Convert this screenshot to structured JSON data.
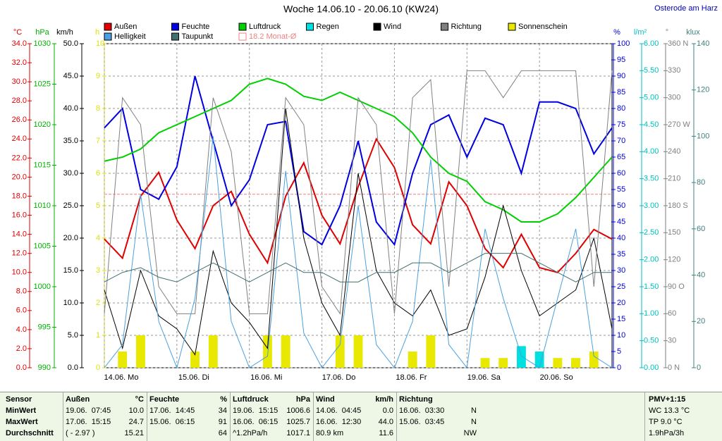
{
  "chart_data": {
    "type": "line",
    "title": "Woche 14.06.10 - 20.06.10 (KW24)",
    "location": "Osterode am Harz",
    "x": [
      0,
      6,
      12,
      18,
      24,
      30,
      36,
      42,
      48,
      54,
      60,
      66,
      72,
      78,
      84,
      90,
      96,
      102,
      108,
      114,
      120,
      126,
      132,
      138,
      144,
      150,
      156,
      162,
      168
    ],
    "xlim": [
      0,
      168
    ],
    "xticks": [
      {
        "value": 0,
        "label": "14.06.  Mo"
      },
      {
        "value": 24,
        "label": "15.06.  Di"
      },
      {
        "value": 48,
        "label": "16.06.  Mi"
      },
      {
        "value": 72,
        "label": "17.06.  Do"
      },
      {
        "value": 96,
        "label": "18.06.  Fr"
      },
      {
        "value": 120,
        "label": "19.06.  Sa"
      },
      {
        "value": 144,
        "label": "20.06.  So"
      }
    ],
    "axes": {
      "y": {
        "label": "°C",
        "color": "#e00000",
        "lim": [
          0,
          34
        ],
        "ticks": [
          {
            "value": 0,
            "label": "0.0"
          },
          {
            "value": 2,
            "label": "2.0"
          },
          {
            "value": 4,
            "label": "4.0"
          },
          {
            "value": 6,
            "label": "6.0"
          },
          {
            "value": 8,
            "label": "8.0"
          },
          {
            "value": 10,
            "label": "10.0"
          },
          {
            "value": 12,
            "label": "12.0"
          },
          {
            "value": 14,
            "label": "14.0"
          },
          {
            "value": 16,
            "label": "16.0"
          },
          {
            "value": 18,
            "label": "18.0"
          },
          {
            "value": 20,
            "label": "20.0"
          },
          {
            "value": 22,
            "label": "22.0"
          },
          {
            "value": 24,
            "label": "24.0"
          },
          {
            "value": 26,
            "label": "26.0"
          },
          {
            "value": 28,
            "label": "28.0"
          },
          {
            "value": 30,
            "label": "30.0"
          },
          {
            "value": 32,
            "label": "32.0"
          },
          {
            "value": 34,
            "label": "34.0"
          }
        ]
      },
      "y2": {
        "label": "hPa",
        "color": "#00b000",
        "lim": [
          990,
          1030
        ],
        "ticks": [
          990,
          995,
          1000,
          1005,
          1010,
          1015,
          1020,
          1025,
          1030
        ]
      },
      "y3": {
        "label": "km/h",
        "color": "#000000",
        "lim": [
          0,
          50
        ],
        "ticks": [
          {
            "value": 0,
            "label": "0.0"
          },
          {
            "value": 5,
            "label": "5.0"
          },
          {
            "value": 10,
            "label": "10.0"
          },
          {
            "value": 15,
            "label": "15.0"
          },
          {
            "value": 20,
            "label": "20.0"
          },
          {
            "value": 25,
            "label": "25.0"
          },
          {
            "value": 30,
            "label": "30.0"
          },
          {
            "value": 35,
            "label": "35.0"
          },
          {
            "value": 40,
            "label": "40.0"
          },
          {
            "value": 45,
            "label": "45.0"
          },
          {
            "value": 50,
            "label": "50.0"
          }
        ]
      },
      "y4": {
        "label": "h",
        "color": "#e0e000",
        "lim": [
          0,
          10
        ],
        "ticks": [
          0,
          1,
          2,
          3,
          4,
          5,
          6,
          7,
          8,
          9,
          10
        ]
      },
      "y5": {
        "label": "%",
        "color": "#0000e0",
        "lim": [
          0,
          100
        ],
        "ticks": [
          0,
          5,
          10,
          15,
          20,
          25,
          30,
          35,
          40,
          45,
          50,
          55,
          60,
          65,
          70,
          75,
          80,
          85,
          90,
          95,
          100
        ]
      },
      "y6": {
        "label": "l/m²",
        "color": "#00c0c0",
        "lim": [
          0,
          6
        ],
        "ticks": [
          {
            "value": 0,
            "label": "0.00"
          },
          {
            "value": 0.5,
            "label": "0.50"
          },
          {
            "value": 1,
            "label": "1.00"
          },
          {
            "value": 1.5,
            "label": "1.50"
          },
          {
            "value": 2,
            "label": "2.00"
          },
          {
            "value": 2.5,
            "label": "2.50"
          },
          {
            "value": 3,
            "label": "3.00"
          },
          {
            "value": 3.5,
            "label": "3.50"
          },
          {
            "value": 4,
            "label": "4.00"
          },
          {
            "value": 4.5,
            "label": "4.50"
          },
          {
            "value": 5,
            "label": "5.00"
          },
          {
            "value": 5.5,
            "label": "5.50"
          },
          {
            "value": 6,
            "label": "6.00"
          }
        ]
      },
      "y7": {
        "label": "°",
        "color": "#808080",
        "lim": [
          0,
          360
        ],
        "ticks": [
          {
            "value": 0,
            "label": "0 N"
          },
          30,
          60,
          {
            "value": 90,
            "label": "90 O"
          },
          120,
          150,
          {
            "value": 180,
            "label": "180 S"
          },
          210,
          240,
          {
            "value": 270,
            "label": "270 W"
          },
          300,
          330,
          {
            "value": 360,
            "label": "360 N"
          }
        ]
      },
      "y8": {
        "label": "klux",
        "color": "#408080",
        "lim": [
          0,
          140
        ],
        "ticks": [
          0,
          20,
          40,
          60,
          80,
          100,
          120,
          140
        ]
      }
    },
    "series": [
      {
        "name": "Außen",
        "type": "line",
        "axis": "y",
        "color": "#e00000",
        "values": [
          13.5,
          11.5,
          18,
          20.5,
          15.5,
          12.5,
          17,
          18.5,
          14,
          11,
          18,
          21.5,
          16,
          13,
          19,
          24,
          21,
          15,
          13,
          19.5,
          17,
          12.5,
          10.5,
          14,
          10.5,
          10,
          12,
          14.5,
          13.5
        ]
      },
      {
        "name": "Feuchte",
        "type": "line",
        "axis": "y5",
        "color": "#0000e0",
        "values": [
          74,
          80,
          55,
          52,
          62,
          90,
          70,
          50,
          58,
          75,
          76,
          42,
          38,
          50,
          70,
          45,
          38,
          60,
          75,
          78,
          65,
          77,
          75,
          60,
          82,
          82,
          80,
          66,
          74
        ]
      },
      {
        "name": "Luftdruck",
        "type": "line",
        "axis": "y2",
        "color": "#00d000",
        "values": [
          1015.5,
          1016,
          1017,
          1019,
          1020,
          1021,
          1022,
          1023,
          1025,
          1025.7,
          1025,
          1023.5,
          1023,
          1024,
          1023,
          1022,
          1021,
          1019,
          1016,
          1014,
          1013,
          1010.5,
          1009.5,
          1008,
          1008,
          1009,
          1011,
          1013.5,
          1016
        ]
      },
      {
        "name": "Regen",
        "type": "bar",
        "axis": "y6",
        "color": "#00e0e0",
        "values": [
          0,
          0,
          0,
          0,
          0,
          0,
          0,
          0,
          0,
          0,
          0,
          0,
          0,
          0,
          0,
          0,
          0,
          0,
          0,
          0,
          0,
          0,
          0,
          0.4,
          0.3,
          0,
          0.1,
          0,
          0
        ]
      },
      {
        "name": "Wind",
        "type": "line",
        "axis": "y3",
        "color": "#000000",
        "values": [
          12,
          3,
          15,
          8,
          6,
          2,
          18,
          10,
          7,
          3,
          40,
          20,
          10,
          5,
          30,
          15,
          10,
          8,
          12,
          5,
          6,
          14,
          25,
          15,
          8,
          10,
          12,
          20,
          6
        ]
      },
      {
        "name": "Richtung",
        "type": "line",
        "axis": "y7",
        "color": "#808080",
        "values": [
          60,
          300,
          270,
          90,
          60,
          60,
          300,
          240,
          60,
          60,
          300,
          270,
          90,
          60,
          300,
          270,
          60,
          300,
          320,
          90,
          330,
          330,
          300,
          330,
          330,
          330,
          330,
          90,
          330
        ]
      },
      {
        "name": "Sonnenschein",
        "type": "bar",
        "axis": "y4",
        "color": "#e8e800",
        "values": [
          0,
          0.5,
          1,
          0,
          0,
          0.5,
          1,
          0,
          0,
          1,
          1,
          0,
          0,
          1,
          1,
          0,
          0,
          0.5,
          1,
          0,
          0,
          0.3,
          0.3,
          0,
          0,
          0.3,
          0.3,
          0.5,
          0
        ]
      },
      {
        "name": "Helligkeit",
        "type": "line",
        "axis": "y8",
        "color": "#4aa0e0",
        "values": [
          0,
          10,
          75,
          20,
          0,
          30,
          100,
          20,
          0,
          5,
          85,
          15,
          0,
          10,
          70,
          10,
          0,
          20,
          90,
          10,
          0,
          60,
          30,
          5,
          0,
          30,
          60,
          5,
          0
        ]
      },
      {
        "name": "Taupunkt",
        "type": "line",
        "axis": "y",
        "color": "#407070",
        "values": [
          9,
          10,
          10.5,
          9.5,
          9,
          10,
          11,
          10,
          9,
          10,
          11,
          10,
          10,
          9,
          9,
          10,
          10,
          11,
          11,
          10,
          11,
          12,
          12,
          12,
          11,
          10,
          9,
          10,
          10
        ]
      }
    ],
    "monthly_avg": {
      "value": 18.2,
      "label": "Monat-Ø",
      "axis": "y",
      "color": "#f08080"
    },
    "grid": true
  },
  "stats": {
    "columns": [
      {
        "title": "Sensor",
        "rows": [
          [
            "MinWert"
          ],
          [
            "MaxWert"
          ],
          [
            "Durchschnitt"
          ]
        ]
      },
      {
        "title": "Außen",
        "unit": "°C",
        "rows": [
          [
            "19.06.  07:45",
            "10.0"
          ],
          [
            "17.06.  15:15",
            "24.7"
          ],
          [
            "( - 2.97 )",
            "15.21"
          ]
        ]
      },
      {
        "title": "Feuchte",
        "unit": "%",
        "rows": [
          [
            "17.06.  14:45",
            "34"
          ],
          [
            "15.06.  06:15",
            "91"
          ],
          [
            "64"
          ]
        ]
      },
      {
        "title": "Luftdruck",
        "unit": "hPa",
        "rows": [
          [
            "19.06.  15:15",
            "1006.6"
          ],
          [
            "16.06.  06:15",
            "1025.7"
          ],
          [
            "^1.2hPa/h",
            "1017.1"
          ]
        ]
      },
      {
        "title": "Wind",
        "unit": "km/h",
        "rows": [
          [
            "14.06.  04:45",
            "0.0"
          ],
          [
            "16.06.  12:30",
            "44.0"
          ],
          [
            "80.9 km",
            "11.6"
          ]
        ]
      },
      {
        "title": "Richtung",
        "rows": [
          [
            "16.06.  03:30",
            "N"
          ],
          [
            "15.06.  03:45",
            "N"
          ],
          [
            "NW"
          ]
        ]
      }
    ],
    "pmv": [
      "PMV+1:15",
      "WC 13.3 °C",
      "TP 9.0 °C",
      "1.9hPa/3h"
    ]
  }
}
